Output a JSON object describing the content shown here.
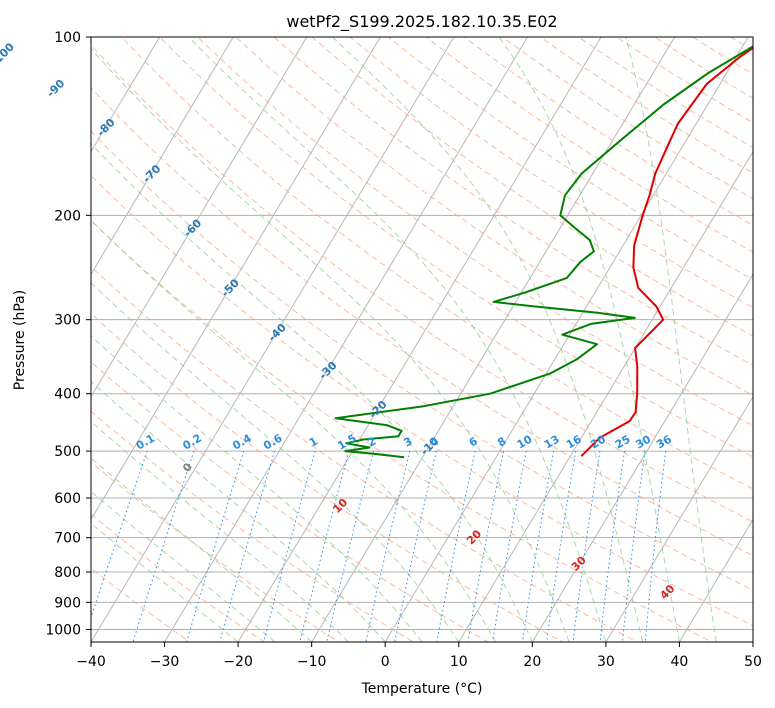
{
  "chart_data": {
    "type": "skew-t log-p",
    "title": "wetPf2_S199.2025.182.10.35.E02",
    "xlabel": "Temperature (°C)",
    "ylabel": "Pressure (hPa)",
    "xlim": [
      -40,
      50
    ],
    "ylim": [
      1050,
      100
    ],
    "y_scale": "log",
    "grid": true,
    "x_ticks": [
      "−40",
      "−30",
      "−20",
      "−10",
      "0",
      "10",
      "20",
      "30",
      "40",
      "50"
    ],
    "y_ticks": [
      "100",
      "200",
      "300",
      "400",
      "500",
      "600",
      "700",
      "800",
      "900",
      "1000"
    ],
    "isotherm_labels": [
      "-100",
      "-90",
      "-80",
      "-70",
      "-60",
      "-50",
      "-40",
      "-30",
      "-20",
      "-10"
    ],
    "mixing_ratio_labels": [
      "0.1",
      "0.2",
      "0.4",
      "0.6",
      "1",
      "1.5",
      "2",
      "3",
      "4",
      "6",
      "8",
      "10",
      "13",
      "16",
      "20",
      "25",
      "30",
      "36"
    ],
    "moist_adiabat_labels": [
      "0",
      "10",
      "20",
      "30",
      "40"
    ],
    "series": [
      {
        "color": "#e00000",
        "points": [
          [
            2.8,
            100
          ],
          [
            0.5,
            108
          ],
          [
            -1.8,
            120
          ],
          [
            -2.5,
            140
          ],
          [
            -2,
            155
          ],
          [
            -1.5,
            170
          ],
          [
            -0.5,
            185
          ],
          [
            0.2,
            200
          ],
          [
            1.5,
            225
          ],
          [
            3.2,
            245
          ],
          [
            5.5,
            265
          ],
          [
            9.5,
            285
          ],
          [
            11.5,
            300
          ],
          [
            10.0,
            335
          ],
          [
            11.8,
            360
          ],
          [
            14.0,
            400
          ],
          [
            15.3,
            430
          ],
          [
            15.2,
            445
          ],
          [
            12.5,
            475
          ],
          [
            11.5,
            510
          ]
        ]
      },
      {
        "color": "#008000",
        "points": [
          [
            2.8,
            100
          ],
          [
            -2.5,
            115
          ],
          [
            -6,
            130
          ],
          [
            -9,
            150
          ],
          [
            -11.5,
            170
          ],
          [
            -12,
            185
          ],
          [
            -11,
            200
          ],
          [
            -8,
            210
          ],
          [
            -5,
            220
          ],
          [
            -3.5,
            230
          ],
          [
            -4.5,
            240
          ],
          [
            -5,
            255
          ],
          [
            -9.5,
            270
          ],
          [
            -13,
            280
          ],
          [
            -7,
            285
          ],
          [
            2,
            292
          ],
          [
            7.5,
            298
          ],
          [
            2,
            305
          ],
          [
            -1,
            318
          ],
          [
            4.5,
            330
          ],
          [
            3,
            350
          ],
          [
            0.5,
            370
          ],
          [
            -6,
            400
          ],
          [
            -14,
            420
          ],
          [
            -25,
            440
          ],
          [
            -17.5,
            452
          ],
          [
            -15,
            462
          ],
          [
            -15,
            472
          ],
          [
            -19.5,
            478
          ],
          [
            -21.5,
            485
          ],
          [
            -18,
            493
          ],
          [
            -21,
            500
          ],
          [
            -17,
            505
          ],
          [
            -12.5,
            512
          ]
        ]
      }
    ]
  }
}
